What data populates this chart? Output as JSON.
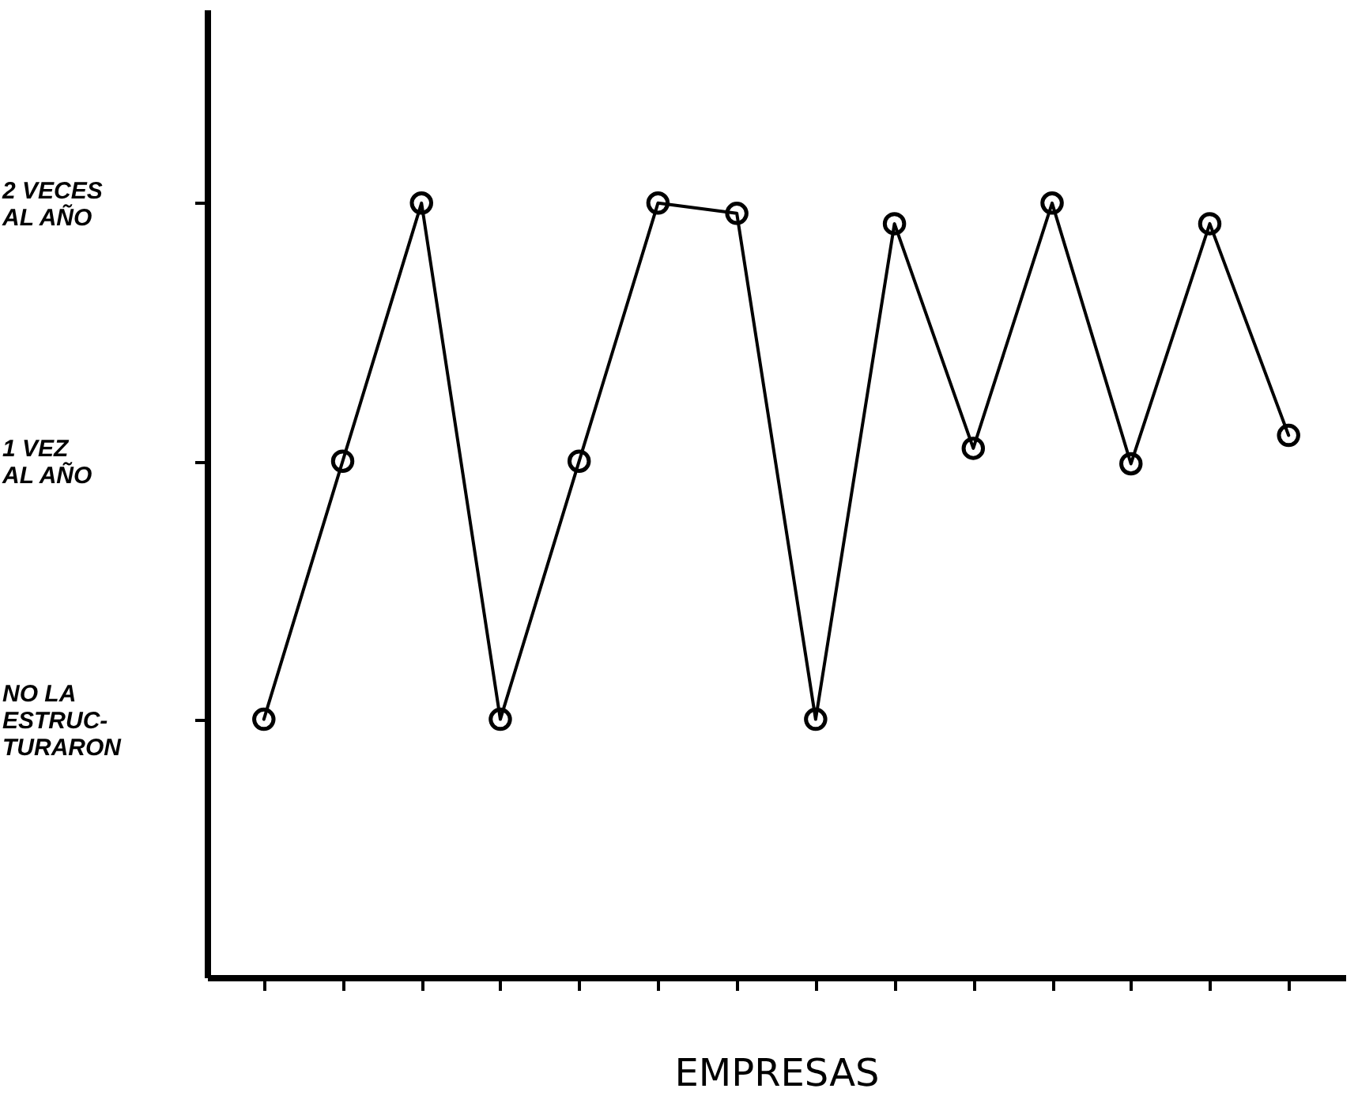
{
  "chart_data": {
    "type": "line",
    "xlabel": "EMPRESAS",
    "categories": [
      null,
      null,
      null,
      null,
      null,
      null,
      null,
      null,
      null,
      null,
      null,
      null,
      null,
      null
    ],
    "series": [
      {
        "color": "#000000",
        "values": [
          0,
          1,
          2,
          0,
          1,
          2,
          1.96,
          0,
          1.92,
          1.05,
          2,
          0.99,
          1.92,
          1.1
        ]
      }
    ],
    "ylim": [
      -1,
      2.75
    ],
    "yticks": [
      {
        "value": 0,
        "label": "NO LA\nESTRUC-\nTURARON"
      },
      {
        "value": 1,
        "label": "1 VEZ\nAL AÑO"
      },
      {
        "value": 2,
        "label": "2 VECES\nAL AÑO"
      }
    ],
    "tick_labels": "y",
    "marker": "circle",
    "line_style": "solid"
  }
}
